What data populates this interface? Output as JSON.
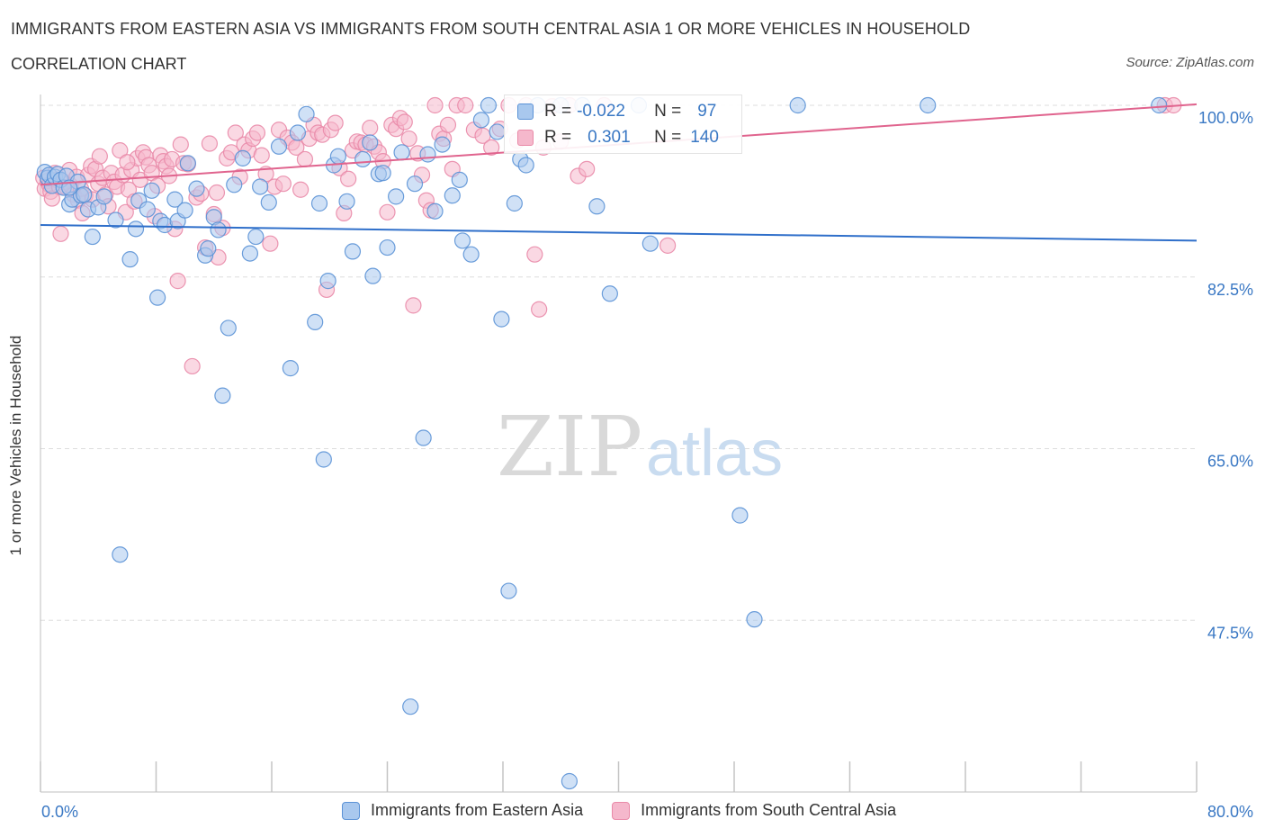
{
  "header": {
    "title": "IMMIGRANTS FROM EASTERN ASIA VS IMMIGRANTS FROM SOUTH CENTRAL ASIA 1 OR MORE VEHICLES IN HOUSEHOLD",
    "subtitle": "CORRELATION CHART",
    "source": "Source: ZipAtlas.com"
  },
  "watermark": {
    "zip": "ZIP",
    "atlas": "atlas"
  },
  "colors": {
    "blue_fill": "#a9c8ee",
    "blue_stroke": "#5b92d6",
    "blue_line": "#2f6fca",
    "pink_fill": "#f5b8cc",
    "pink_stroke": "#e98aa8",
    "pink_line": "#e0648e",
    "grid": "#dddddd",
    "tick_label": "#3a78c4"
  },
  "stats": {
    "r_label": "R =",
    "n_label": "N =",
    "blue": {
      "r": "-0.022",
      "n": "97"
    },
    "pink": {
      "r": "0.301",
      "n": "140"
    }
  },
  "chart_data": {
    "type": "scatter",
    "title": "IMMIGRANTS FROM EASTERN ASIA VS IMMIGRANTS FROM SOUTH CENTRAL ASIA 1 OR MORE VEHICLES IN HOUSEHOLD",
    "subtitle": "CORRELATION CHART",
    "xlabel": "",
    "ylabel": "1 or more Vehicles in Household",
    "xlim": [
      0,
      80
    ],
    "ylim": [
      30,
      100
    ],
    "x_tick_labels": [
      "0.0%",
      "80.0%"
    ],
    "y_ticks": [
      100,
      82.5,
      65,
      47.5
    ],
    "y_tick_labels": [
      "100.0%",
      "82.5%",
      "65.0%",
      "47.5%"
    ],
    "grid": true,
    "legend_position": "bottom-center",
    "series": [
      {
        "name": "Immigrants from Eastern Asia",
        "color": "#a9c8ee",
        "r": -0.022,
        "n": 97,
        "trend": [
          [
            0,
            87.8
          ],
          [
            80,
            86.2
          ]
        ],
        "points": [
          [
            0.3,
            93.2
          ],
          [
            0.5,
            92.6
          ],
          [
            0.6,
            92.9
          ],
          [
            0.8,
            91.8
          ],
          [
            1.0,
            92.7
          ],
          [
            1.2,
            93.0
          ],
          [
            1.4,
            92.4
          ],
          [
            1.6,
            91.6
          ],
          [
            1.8,
            92.8
          ],
          [
            2.0,
            89.9
          ],
          [
            2.2,
            90.4
          ],
          [
            2.6,
            92.2
          ],
          [
            2.8,
            90.8
          ],
          [
            3.0,
            90.9
          ],
          [
            3.3,
            89.4
          ],
          [
            3.6,
            86.6
          ],
          [
            4.0,
            89.6
          ],
          [
            4.4,
            90.7
          ],
          [
            5.2,
            88.3
          ],
          [
            6.2,
            84.3
          ],
          [
            6.6,
            87.4
          ],
          [
            6.8,
            90.3
          ],
          [
            7.4,
            89.4
          ],
          [
            7.7,
            91.3
          ],
          [
            8.1,
            80.4
          ],
          [
            8.3,
            88.2
          ],
          [
            8.6,
            87.8
          ],
          [
            9.3,
            90.4
          ],
          [
            9.5,
            88.2
          ],
          [
            10.0,
            89.3
          ],
          [
            10.2,
            94.1
          ],
          [
            10.8,
            91.5
          ],
          [
            11.4,
            84.7
          ],
          [
            11.6,
            85.4
          ],
          [
            12.0,
            88.6
          ],
          [
            12.3,
            87.3
          ],
          [
            12.6,
            70.4
          ],
          [
            13.0,
            77.3
          ],
          [
            13.4,
            91.9
          ],
          [
            14.0,
            94.6
          ],
          [
            14.5,
            84.9
          ],
          [
            14.9,
            86.6
          ],
          [
            15.2,
            91.7
          ],
          [
            15.8,
            90.1
          ],
          [
            16.5,
            95.8
          ],
          [
            17.3,
            73.2
          ],
          [
            17.8,
            97.2
          ],
          [
            18.4,
            99.1
          ],
          [
            19.0,
            77.9
          ],
          [
            19.3,
            90.0
          ],
          [
            19.6,
            63.9
          ],
          [
            19.9,
            82.1
          ],
          [
            20.3,
            93.9
          ],
          [
            20.6,
            94.8
          ],
          [
            21.2,
            90.2
          ],
          [
            21.6,
            85.1
          ],
          [
            22.3,
            94.5
          ],
          [
            22.8,
            96.2
          ],
          [
            23.0,
            82.6
          ],
          [
            23.4,
            93.0
          ],
          [
            23.7,
            93.1
          ],
          [
            24.0,
            85.5
          ],
          [
            24.6,
            90.7
          ],
          [
            25.0,
            95.2
          ],
          [
            25.6,
            38.7
          ],
          [
            25.9,
            92.0
          ],
          [
            26.5,
            66.1
          ],
          [
            26.8,
            95.0
          ],
          [
            27.3,
            89.2
          ],
          [
            27.8,
            96.0
          ],
          [
            28.5,
            90.8
          ],
          [
            29.0,
            92.4
          ],
          [
            29.2,
            86.2
          ],
          [
            29.8,
            84.8
          ],
          [
            30.5,
            98.5
          ],
          [
            31.0,
            100.0
          ],
          [
            31.6,
            97.3
          ],
          [
            31.9,
            78.2
          ],
          [
            32.4,
            50.5
          ],
          [
            32.8,
            90.0
          ],
          [
            33.2,
            94.5
          ],
          [
            33.6,
            93.9
          ],
          [
            34.4,
            100.0
          ],
          [
            36.0,
            100.0
          ],
          [
            36.6,
            31.1
          ],
          [
            37.5,
            100.0
          ],
          [
            38.5,
            89.7
          ],
          [
            39.4,
            80.8
          ],
          [
            41.4,
            100.0
          ],
          [
            42.2,
            85.9
          ],
          [
            48.4,
            58.2
          ],
          [
            49.4,
            47.6
          ],
          [
            52.4,
            100.0
          ],
          [
            61.4,
            100.0
          ],
          [
            77.4,
            100.0
          ],
          [
            5.5,
            54.2
          ],
          [
            2.0,
            91.6
          ]
        ]
      },
      {
        "name": "Immigrants from South Central Asia",
        "color": "#f5b8cc",
        "r": 0.301,
        "n": 140,
        "trend": [
          [
            0,
            91.9
          ],
          [
            80,
            100.1
          ]
        ],
        "points": [
          [
            0.2,
            92.6
          ],
          [
            0.3,
            91.5
          ],
          [
            0.5,
            92.3
          ],
          [
            0.6,
            91.9
          ],
          [
            0.7,
            91.2
          ],
          [
            0.8,
            90.5
          ],
          [
            1.0,
            93.1
          ],
          [
            1.1,
            92.4
          ],
          [
            1.3,
            91.7
          ],
          [
            1.4,
            86.9
          ],
          [
            1.6,
            92.2
          ],
          [
            1.8,
            91.6
          ],
          [
            2.0,
            93.4
          ],
          [
            2.1,
            91.8
          ],
          [
            2.3,
            90.9
          ],
          [
            2.5,
            92.7
          ],
          [
            2.6,
            90.3
          ],
          [
            2.8,
            91.5
          ],
          [
            2.9,
            89.0
          ],
          [
            3.1,
            90.8
          ],
          [
            3.3,
            92.9
          ],
          [
            3.5,
            93.8
          ],
          [
            3.6,
            90.4
          ],
          [
            3.8,
            93.5
          ],
          [
            4.0,
            92.0
          ],
          [
            4.1,
            94.8
          ],
          [
            4.3,
            92.6
          ],
          [
            4.5,
            90.9
          ],
          [
            4.7,
            89.7
          ],
          [
            4.9,
            93.1
          ],
          [
            5.1,
            92.2
          ],
          [
            5.3,
            91.7
          ],
          [
            5.5,
            95.4
          ],
          [
            5.7,
            92.9
          ],
          [
            5.9,
            89.1
          ],
          [
            6.1,
            91.4
          ],
          [
            6.3,
            93.4
          ],
          [
            6.5,
            90.2
          ],
          [
            6.7,
            94.6
          ],
          [
            6.9,
            92.4
          ],
          [
            7.1,
            95.2
          ],
          [
            7.3,
            94.7
          ],
          [
            7.5,
            93.9
          ],
          [
            7.7,
            93.1
          ],
          [
            7.9,
            88.7
          ],
          [
            8.1,
            91.8
          ],
          [
            8.3,
            94.9
          ],
          [
            8.5,
            94.3
          ],
          [
            8.7,
            93.8
          ],
          [
            8.9,
            92.8
          ],
          [
            9.1,
            94.5
          ],
          [
            9.3,
            87.4
          ],
          [
            9.5,
            82.1
          ],
          [
            9.7,
            96.0
          ],
          [
            9.9,
            94.1
          ],
          [
            10.2,
            94.0
          ],
          [
            10.5,
            73.4
          ],
          [
            10.8,
            90.6
          ],
          [
            11.1,
            91.0
          ],
          [
            11.4,
            85.5
          ],
          [
            11.7,
            96.1
          ],
          [
            12.0,
            88.9
          ],
          [
            12.3,
            84.5
          ],
          [
            12.6,
            87.5
          ],
          [
            12.9,
            94.6
          ],
          [
            13.2,
            95.2
          ],
          [
            13.5,
            97.2
          ],
          [
            13.8,
            92.7
          ],
          [
            14.1,
            96.0
          ],
          [
            14.4,
            95.4
          ],
          [
            14.7,
            96.6
          ],
          [
            15.0,
            97.2
          ],
          [
            15.3,
            94.9
          ],
          [
            15.6,
            93.0
          ],
          [
            15.9,
            85.9
          ],
          [
            16.2,
            91.7
          ],
          [
            16.5,
            97.5
          ],
          [
            16.8,
            92.0
          ],
          [
            17.1,
            96.7
          ],
          [
            17.4,
            96.2
          ],
          [
            17.7,
            95.7
          ],
          [
            18.0,
            91.4
          ],
          [
            18.3,
            94.5
          ],
          [
            18.6,
            96.6
          ],
          [
            18.9,
            98.0
          ],
          [
            19.2,
            97.2
          ],
          [
            19.5,
            97.0
          ],
          [
            19.8,
            81.2
          ],
          [
            20.1,
            97.5
          ],
          [
            20.4,
            98.2
          ],
          [
            20.7,
            93.6
          ],
          [
            21.0,
            89.0
          ],
          [
            21.3,
            92.5
          ],
          [
            21.6,
            95.4
          ],
          [
            21.9,
            96.3
          ],
          [
            22.2,
            96.2
          ],
          [
            22.5,
            96.0
          ],
          [
            22.8,
            97.7
          ],
          [
            23.1,
            95.8
          ],
          [
            23.4,
            95.2
          ],
          [
            23.7,
            94.3
          ],
          [
            24.0,
            89.1
          ],
          [
            24.3,
            98.0
          ],
          [
            24.6,
            97.6
          ],
          [
            24.9,
            98.7
          ],
          [
            25.2,
            98.3
          ],
          [
            25.5,
            96.6
          ],
          [
            25.8,
            79.6
          ],
          [
            26.1,
            95.1
          ],
          [
            26.4,
            92.9
          ],
          [
            26.7,
            90.3
          ],
          [
            27.0,
            89.3
          ],
          [
            27.3,
            100.0
          ],
          [
            27.6,
            97.1
          ],
          [
            27.9,
            96.6
          ],
          [
            28.2,
            98.0
          ],
          [
            28.5,
            93.5
          ],
          [
            28.8,
            100.0
          ],
          [
            29.4,
            100.0
          ],
          [
            30.0,
            97.5
          ],
          [
            30.6,
            96.9
          ],
          [
            31.2,
            95.7
          ],
          [
            31.8,
            97.6
          ],
          [
            32.4,
            100.0
          ],
          [
            33.0,
            96.4
          ],
          [
            33.6,
            100.0
          ],
          [
            34.2,
            84.8
          ],
          [
            34.5,
            79.2
          ],
          [
            34.8,
            95.7
          ],
          [
            35.4,
            99.9
          ],
          [
            36.0,
            96.3
          ],
          [
            36.6,
            100.0
          ],
          [
            37.2,
            92.8
          ],
          [
            37.8,
            93.5
          ],
          [
            39.0,
            100.0
          ],
          [
            43.4,
            85.7
          ],
          [
            77.8,
            100.0
          ],
          [
            78.4,
            100.0
          ],
          [
            12.2,
            91.1
          ],
          [
            6.0,
            94.2
          ]
        ]
      }
    ]
  },
  "legend": {
    "items": [
      {
        "label": "Immigrants from Eastern Asia"
      },
      {
        "label": "Immigrants from South Central Asia"
      }
    ]
  },
  "axes": {
    "x_min_label": "0.0%",
    "x_max_label": "80.0%",
    "ylabel": "1 or more Vehicles in Household"
  }
}
